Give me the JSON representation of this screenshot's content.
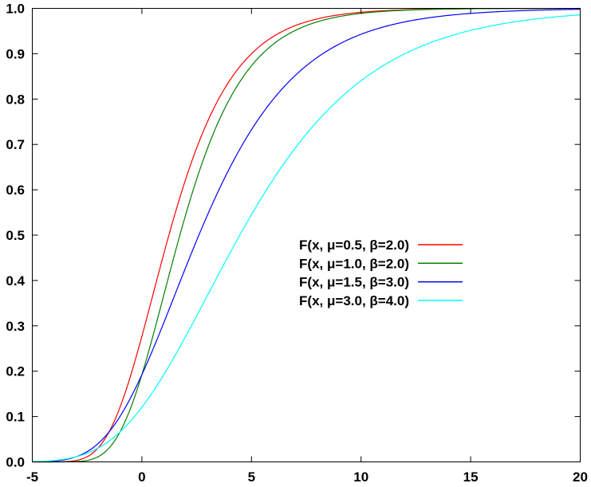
{
  "chart_data": {
    "type": "line",
    "title": "",
    "xlabel": "",
    "ylabel": "",
    "xlim": [
      -5,
      20
    ],
    "ylim": [
      0,
      1
    ],
    "xticks": [
      "-5",
      "0",
      "5",
      "10",
      "15",
      "20"
    ],
    "yticks": [
      "0.0",
      "0.1",
      "0.2",
      "0.3",
      "0.4",
      "0.5",
      "0.6",
      "0.7",
      "0.8",
      "0.9",
      "1.0"
    ],
    "grid": false,
    "legend_placement": "center-right",
    "function": "F(x) = exp(-exp(-(x-mu)/beta))",
    "series": [
      {
        "name": "F(x, μ=0.5, β=2.0)",
        "mu": 0.5,
        "beta": 2.0,
        "color": "#ff0000"
      },
      {
        "name": "F(x, μ=1.0, β=2.0)",
        "mu": 1.0,
        "beta": 2.0,
        "color": "#008000"
      },
      {
        "name": "F(x, μ=1.5, β=3.0)",
        "mu": 1.5,
        "beta": 3.0,
        "color": "#0000ff"
      },
      {
        "name": "F(x, μ=3.0, β=4.0)",
        "mu": 3.0,
        "beta": 4.0,
        "color": "#00ffff"
      }
    ]
  }
}
